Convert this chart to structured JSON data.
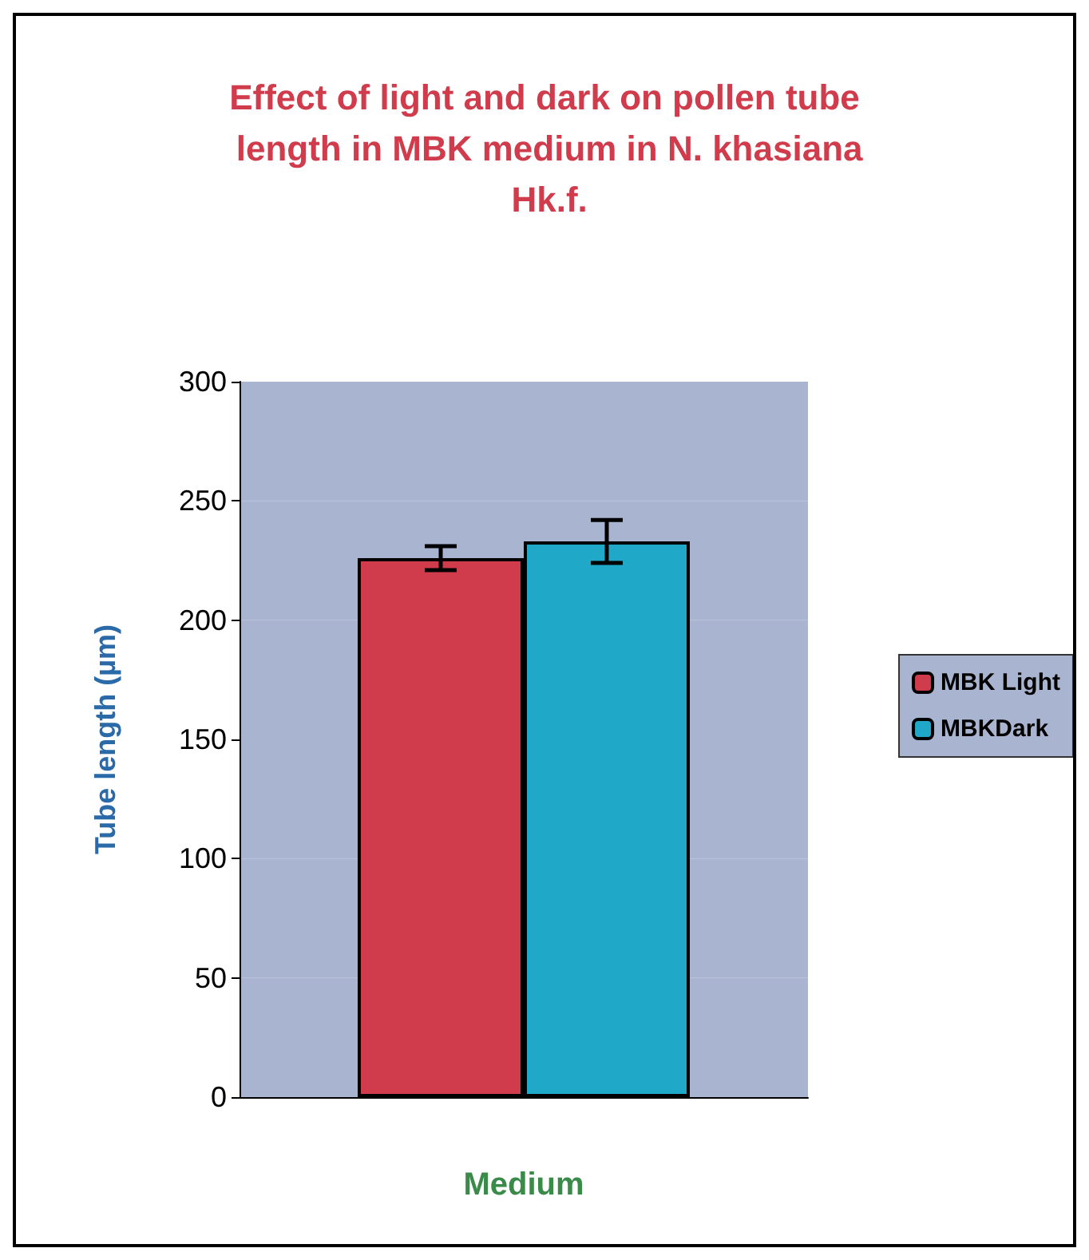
{
  "chart_data": {
    "type": "bar",
    "title": "Effect of light and dark on pollen tube length in MBK medium in N. khasiana Hk.f.",
    "xlabel": "Medium",
    "ylabel": "Tube length (µm)",
    "categories": [
      null
    ],
    "series": [
      {
        "name": "MBK Light",
        "color": "#d03c4c",
        "values": [
          226
        ],
        "errors": [
          5
        ]
      },
      {
        "name": "MBKDark",
        "color": "#20a8c8",
        "values": [
          233
        ],
        "errors": [
          9
        ]
      }
    ],
    "ylim": [
      0,
      300
    ],
    "yticks": [
      0,
      50,
      100,
      150,
      200,
      250,
      300
    ],
    "grid": false,
    "legend": "right"
  }
}
